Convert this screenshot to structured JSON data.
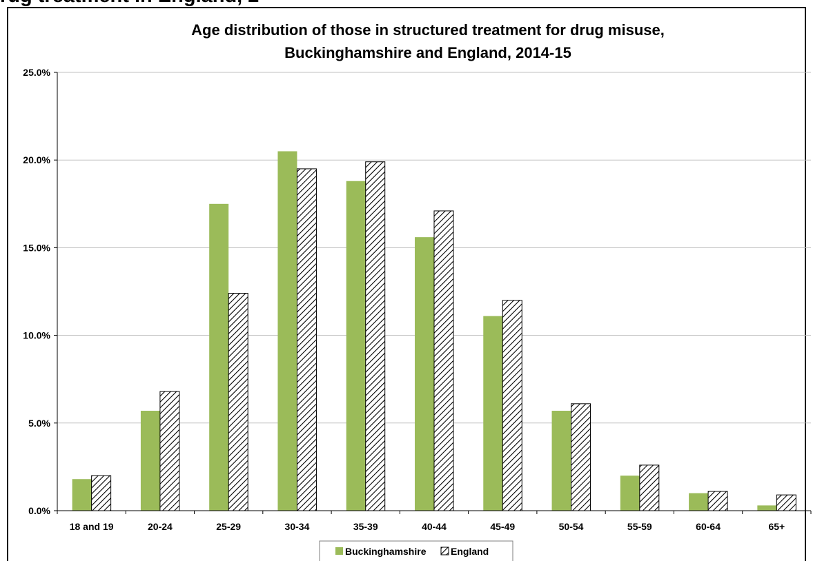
{
  "page": {
    "clipped_heading": "rug treatment in England, 2"
  },
  "chart_data": {
    "type": "bar",
    "title": [
      "Age distribution of those in structured treatment for drug misuse,",
      "Buckinghamshire and England, 2014-15"
    ],
    "categories": [
      "18 and 19",
      "20-24",
      "25-29",
      "30-34",
      "35-39",
      "40-44",
      "45-49",
      "50-54",
      "55-59",
      "60-64",
      "65+"
    ],
    "series": [
      {
        "name": "Buckinghamshire",
        "color": "#9bbb59",
        "fill": "solid",
        "values": [
          1.8,
          5.7,
          17.5,
          20.5,
          18.8,
          15.6,
          11.1,
          5.7,
          2.0,
          1.0,
          0.3
        ]
      },
      {
        "name": "England",
        "color": "#000000",
        "fill": "hatched",
        "values": [
          2.0,
          6.8,
          12.4,
          19.5,
          19.9,
          17.1,
          12.0,
          6.1,
          2.6,
          1.1,
          0.9
        ]
      }
    ],
    "yticks": [
      "0.0%",
      "5.0%",
      "10.0%",
      "15.0%",
      "20.0%",
      "25.0%"
    ],
    "ylim": [
      0,
      25
    ],
    "ytick_step": 5,
    "grid": true,
    "legend_position": "bottom"
  }
}
